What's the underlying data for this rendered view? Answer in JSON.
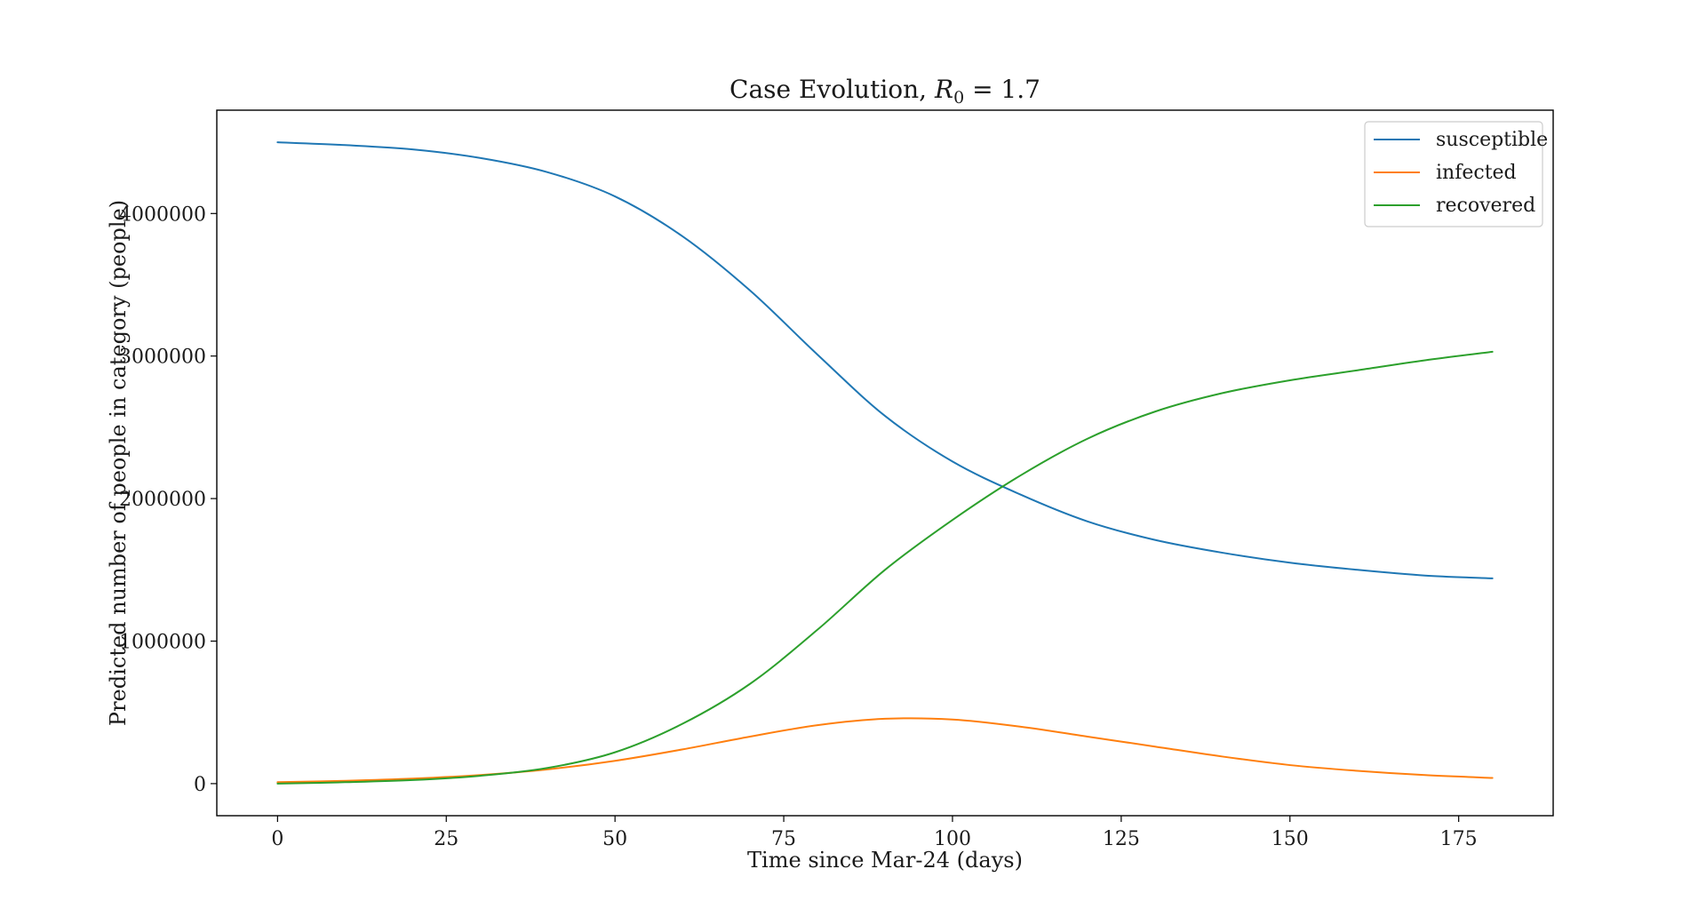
{
  "chart_data": {
    "type": "line",
    "title": {
      "prefix": "Case Evolution, ",
      "symbol": "R",
      "subscript": "0",
      "suffix": " = 1.7"
    },
    "xlabel": "Time since Mar-24 (days)",
    "ylabel": "Predicted number of people in category (people)",
    "xlim": [
      -9,
      189
    ],
    "ylim": [
      -225000,
      4725000
    ],
    "xticks": [
      0,
      25,
      50,
      75,
      100,
      125,
      150,
      175
    ],
    "yticks": [
      0,
      1000000,
      2000000,
      3000000,
      4000000
    ],
    "ytick_labels": [
      "0",
      "1000000",
      "2000000",
      "3000000",
      "4000000"
    ],
    "grid": false,
    "legend_position": "top-right",
    "x": [
      0,
      10,
      20,
      30,
      40,
      50,
      60,
      70,
      80,
      90,
      100,
      110,
      120,
      130,
      140,
      150,
      160,
      170,
      180
    ],
    "series": [
      {
        "name": "susceptible",
        "color": "#1f77b4",
        "values": [
          4500000,
          4480000,
          4450000,
          4390000,
          4290000,
          4120000,
          3840000,
          3460000,
          3010000,
          2580000,
          2260000,
          2030000,
          1840000,
          1710000,
          1620000,
          1550000,
          1500000,
          1460000,
          1440000
        ]
      },
      {
        "name": "infected",
        "color": "#ff7f0e",
        "values": [
          10000,
          20000,
          35000,
          60000,
          100000,
          160000,
          240000,
          330000,
          410000,
          455000,
          450000,
          400000,
          330000,
          260000,
          190000,
          130000,
          90000,
          60000,
          40000
        ]
      },
      {
        "name": "recovered",
        "color": "#2ca02c",
        "values": [
          0,
          10000,
          25000,
          55000,
          110000,
          220000,
          420000,
          700000,
          1080000,
          1500000,
          1850000,
          2160000,
          2420000,
          2610000,
          2740000,
          2830000,
          2900000,
          2970000,
          3030000
        ]
      }
    ]
  }
}
